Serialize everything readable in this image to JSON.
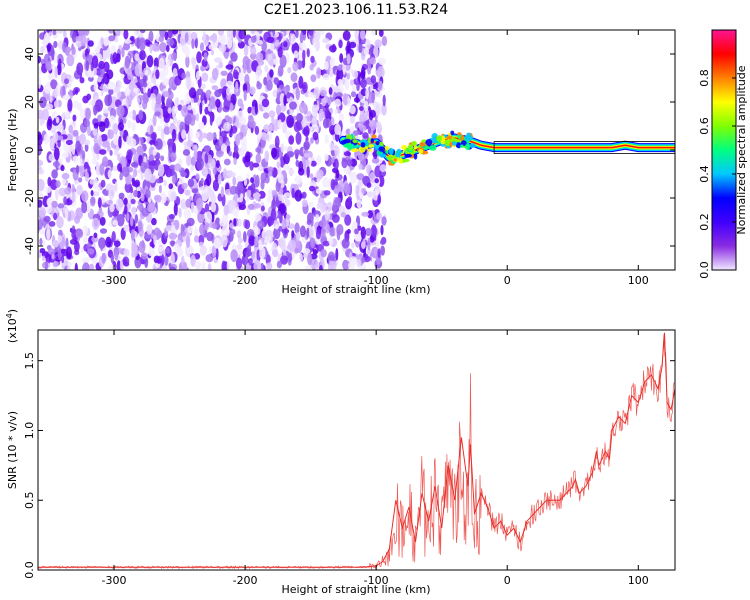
{
  "chart_data": [
    {
      "type": "heatmap",
      "title": "C2E1.2023.106.11.53.R24",
      "xlabel": "Height of straight line (km)",
      "ylabel": "Frequency (Hz)",
      "xlim": [
        -358,
        128
      ],
      "ylim": [
        -50,
        50
      ],
      "xticks": [
        -300,
        -200,
        -100,
        0,
        100
      ],
      "yticks": [
        -40,
        -20,
        0,
        20,
        40
      ],
      "grid": false,
      "noise_region": {
        "x_range": [
          -358,
          -98
        ],
        "color": "#7a2bf0"
      },
      "signal_track": [
        {
          "x": -125,
          "y": 4
        },
        {
          "x": -110,
          "y": 2
        },
        {
          "x": -100,
          "y": 3
        },
        {
          "x": -90,
          "y": -3
        },
        {
          "x": -80,
          "y": -2
        },
        {
          "x": -70,
          "y": 0
        },
        {
          "x": -60,
          "y": 2
        },
        {
          "x": -50,
          "y": 4
        },
        {
          "x": -40,
          "y": 5
        },
        {
          "x": -30,
          "y": 4
        },
        {
          "x": -20,
          "y": 2
        },
        {
          "x": -10,
          "y": 1
        },
        {
          "x": 0,
          "y": 1
        },
        {
          "x": 20,
          "y": 1
        },
        {
          "x": 40,
          "y": 1
        },
        {
          "x": 60,
          "y": 1
        },
        {
          "x": 80,
          "y": 1
        },
        {
          "x": 90,
          "y": 2
        },
        {
          "x": 100,
          "y": 1
        },
        {
          "x": 128,
          "y": 1
        }
      ],
      "colorbar": {
        "label": "Normalized spectral amplitude",
        "ticks": [
          "0.0",
          "0.2",
          "0.4",
          "0.6",
          "0.8"
        ],
        "range": [
          0,
          1
        ],
        "stops": [
          "#f0e8ff",
          "#8a2be2",
          "#4000ff",
          "#0000ff",
          "#00c8ff",
          "#00ff80",
          "#80ff00",
          "#ffff00",
          "#ff8000",
          "#ff0000",
          "#ff1493"
        ]
      }
    },
    {
      "type": "line",
      "title": "",
      "xlabel": "Height of straight line (km)",
      "ylabel": "SNR (10 * v/v)",
      "yscale_label": "(x10",
      "yscale_exp": "4",
      "yscale_close": ")",
      "xlim": [
        -358,
        128
      ],
      "ylim": [
        0,
        1.72
      ],
      "xticks": [
        -300,
        -200,
        -100,
        0,
        100
      ],
      "yticks": [
        "0.0",
        "0.5",
        "1.0",
        "1.5"
      ],
      "grid": false,
      "series": [
        {
          "color": "#e8302a",
          "x": [
            -358,
            -300,
            -250,
            -200,
            -150,
            -110,
            -100,
            -95,
            -90,
            -85,
            -80,
            -75,
            -70,
            -65,
            -60,
            -55,
            -50,
            -45,
            -40,
            -35,
            -30,
            -28,
            -25,
            -20,
            -15,
            -10,
            -5,
            0,
            5,
            10,
            15,
            20,
            25,
            30,
            35,
            40,
            45,
            50,
            52,
            55,
            60,
            65,
            68,
            70,
            75,
            78,
            80,
            85,
            90,
            95,
            100,
            105,
            110,
            115,
            118,
            120,
            122,
            125,
            128
          ],
          "y": [
            0.02,
            0.02,
            0.02,
            0.02,
            0.02,
            0.02,
            0.03,
            0.06,
            0.15,
            0.5,
            0.3,
            0.45,
            0.2,
            0.55,
            0.35,
            0.6,
            0.3,
            0.75,
            0.5,
            0.95,
            0.6,
            0.9,
            0.4,
            0.55,
            0.45,
            0.3,
            0.35,
            0.25,
            0.3,
            0.2,
            0.35,
            0.4,
            0.45,
            0.5,
            0.5,
            0.5,
            0.55,
            0.6,
            0.65,
            0.55,
            0.6,
            0.7,
            0.85,
            0.75,
            0.85,
            0.8,
            1.0,
            1.1,
            1.05,
            1.25,
            1.2,
            1.35,
            1.4,
            1.3,
            1.45,
            1.7,
            1.2,
            1.15,
            1.3
          ]
        }
      ]
    }
  ]
}
